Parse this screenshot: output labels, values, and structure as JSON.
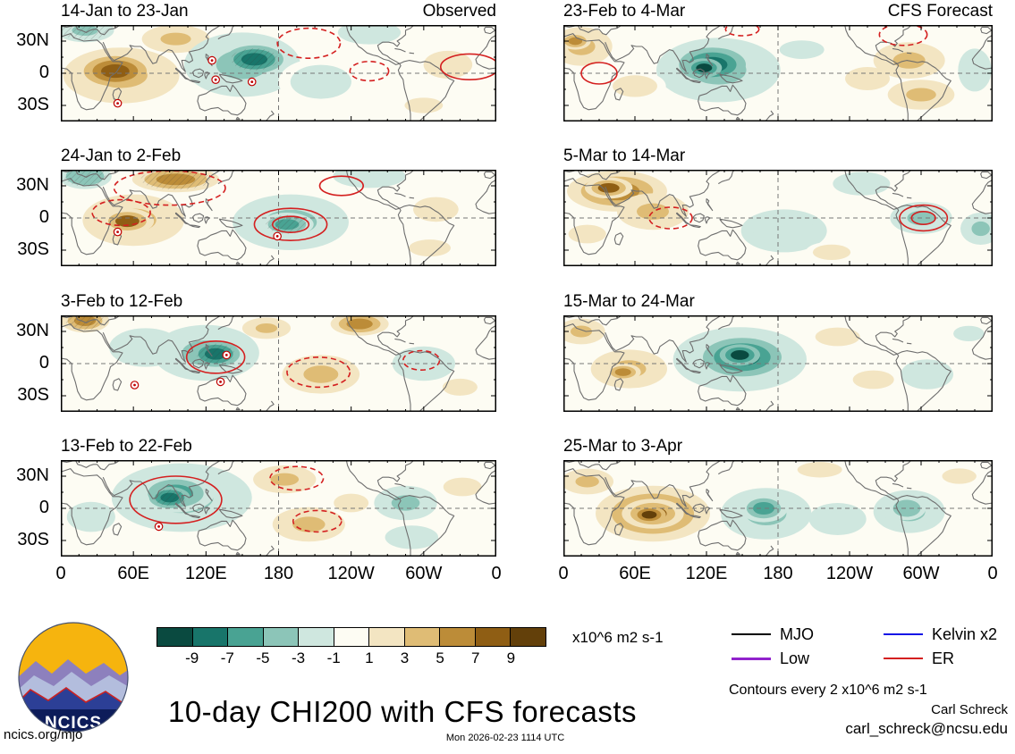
{
  "page": {
    "title": "10-day CHI200 with CFS forecasts",
    "site": "ncics.org/mjo",
    "timestamp": "Mon 2026-02-23 1114 UTC",
    "credit_name": "Carl Schreck",
    "credit_email": "carl_schreck@ncsu.edu",
    "contours_note": "Contours every 2 x10^6 m2 s-1",
    "logo_text": "NCICS"
  },
  "columns": [
    {
      "header": "Observed"
    },
    {
      "header": "CFS Forecast"
    }
  ],
  "axes": {
    "lat_ticks": [
      "30N",
      "0",
      "30S"
    ],
    "lon_ticks": [
      "0",
      "60E",
      "120E",
      "180",
      "120W",
      "60W",
      "0"
    ]
  },
  "colorbar": {
    "unit": "x10^6 m2 s-1",
    "tick_labels": [
      "-9",
      "-7",
      "-5",
      "-3",
      "-1",
      "1",
      "3",
      "5",
      "7",
      "9"
    ],
    "colors": [
      "#0a4a40",
      "#18756a",
      "#49a393",
      "#8cc5b8",
      "#cfe7df",
      "#fdfcf3",
      "#f3e5c2",
      "#dfbc75",
      "#bc8c38",
      "#8f5e14",
      "#63400a"
    ]
  },
  "legend": [
    {
      "label": "MJO",
      "color": "#000000",
      "width": 2.2
    },
    {
      "label": "Kelvin x2",
      "color": "#1515e6",
      "width": 2.2
    },
    {
      "label": "Low",
      "color": "#9122cc",
      "width": 3
    },
    {
      "label": "ER",
      "color": "#d42020",
      "width": 2.2
    }
  ],
  "chart_data": {
    "type": "heatmap",
    "title": "10-day CHI200 with CFS forecasts",
    "variable": "CHI200 velocity potential anomaly",
    "unit": "x10^6 m2 s-1",
    "contour_interval": 2,
    "colorbar_levels": [
      -9,
      -7,
      -5,
      -3,
      -1,
      1,
      3,
      5,
      7,
      9
    ],
    "lon_range": [
      0,
      360
    ],
    "lat_range": [
      -45,
      45
    ],
    "panels": [
      {
        "period": "14-Jan to 23-Jan",
        "column": "Observed",
        "anomalies": [
          {
            "lon": 50,
            "lat": -2,
            "rlon": 48,
            "rlat": 26,
            "v": 4
          },
          {
            "lon": 45,
            "lat": 2,
            "rlon": 26,
            "rlat": 14,
            "v": 8
          },
          {
            "lon": 95,
            "lat": 32,
            "rlon": 28,
            "rlat": 13,
            "v": 4
          },
          {
            "lon": 150,
            "lat": 8,
            "rlon": 48,
            "rlat": 30,
            "v": -4
          },
          {
            "lon": 160,
            "lat": 13,
            "rlon": 24,
            "rlat": 13,
            "v": -8,
            "hatch": true
          },
          {
            "lon": 20,
            "lat": 40,
            "rlon": 24,
            "rlat": 11,
            "v": -4,
            "hatch": true
          },
          {
            "lon": 215,
            "lat": -8,
            "rlon": 35,
            "rlat": 22,
            "v": -2
          },
          {
            "lon": 255,
            "lat": 38,
            "rlon": 26,
            "rlat": 11,
            "v": -3
          },
          {
            "lon": 320,
            "lat": 8,
            "rlon": 28,
            "rlat": 18,
            "v": 2
          },
          {
            "lon": 300,
            "lat": -30,
            "rlon": 22,
            "rlat": 10,
            "v": 2
          }
        ],
        "er_contours": [
          {
            "lon": 205,
            "lat": 28,
            "rlon": 26,
            "rlat": 14,
            "dashed": true
          },
          {
            "lon": 338,
            "lat": 6,
            "rlon": 24,
            "rlat": 12,
            "dashed": false
          },
          {
            "lon": 255,
            "lat": 2,
            "rlon": 16,
            "rlat": 9,
            "dashed": true
          }
        ],
        "markers": [
          [
            47,
            -28
          ],
          [
            125,
            12
          ],
          [
            128,
            -6
          ],
          [
            158,
            -8
          ]
        ]
      },
      {
        "period": "24-Jan to 2-Feb",
        "column": "Observed",
        "anomalies": [
          {
            "lon": 60,
            "lat": -2,
            "rlon": 42,
            "rlat": 24,
            "v": 4
          },
          {
            "lon": 55,
            "lat": -3,
            "rlon": 22,
            "rlat": 12,
            "v": 7
          },
          {
            "lon": 95,
            "lat": 36,
            "rlon": 36,
            "rlat": 12,
            "v": 5,
            "hatch": true
          },
          {
            "lon": 20,
            "lat": 39,
            "rlon": 22,
            "rlat": 12,
            "v": -5,
            "hatch": true
          },
          {
            "lon": 190,
            "lat": -4,
            "rlon": 48,
            "rlat": 26,
            "v": -4
          },
          {
            "lon": 187,
            "lat": -6,
            "rlon": 22,
            "rlat": 11,
            "v": -7,
            "hatch": true
          },
          {
            "lon": 255,
            "lat": 39,
            "rlon": 30,
            "rlat": 11,
            "v": -3
          },
          {
            "lon": 310,
            "lat": 8,
            "rlon": 26,
            "rlat": 16,
            "v": 2
          },
          {
            "lon": 305,
            "lat": -28,
            "rlon": 24,
            "rlat": 11,
            "v": 2
          }
        ],
        "er_contours": [
          {
            "lon": 190,
            "lat": -6,
            "rlon": 30,
            "rlat": 15,
            "dashed": false,
            "double": true
          },
          {
            "lon": 90,
            "lat": 28,
            "rlon": 46,
            "rlat": 16,
            "dashed": true
          },
          {
            "lon": 50,
            "lat": 5,
            "rlon": 24,
            "rlat": 12,
            "dashed": true
          },
          {
            "lon": 232,
            "lat": 30,
            "rlon": 18,
            "rlat": 9,
            "dashed": false
          }
        ],
        "markers": [
          [
            47,
            -13
          ],
          [
            179,
            -17
          ]
        ]
      },
      {
        "period": "3-Feb to 12-Feb",
        "column": "Observed",
        "anomalies": [
          {
            "lon": 120,
            "lat": 10,
            "rlon": 44,
            "rlat": 26,
            "v": -4
          },
          {
            "lon": 128,
            "lat": 9,
            "rlon": 20,
            "rlat": 12,
            "v": -8,
            "hatch": true
          },
          {
            "lon": 70,
            "lat": 15,
            "rlon": 30,
            "rlat": 18,
            "v": -3
          },
          {
            "lon": 20,
            "lat": 40,
            "rlon": 20,
            "rlat": 11,
            "v": 5,
            "hatch": true
          },
          {
            "lon": 215,
            "lat": -10,
            "rlon": 32,
            "rlat": 18,
            "v": 4
          },
          {
            "lon": 247,
            "lat": 37,
            "rlon": 24,
            "rlat": 11,
            "v": 5
          },
          {
            "lon": 170,
            "lat": 33,
            "rlon": 20,
            "rlat": 10,
            "v": 3
          },
          {
            "lon": 300,
            "lat": 0,
            "rlon": 26,
            "rlat": 16,
            "v": -3
          },
          {
            "lon": 330,
            "lat": -22,
            "rlon": 20,
            "rlat": 11,
            "v": 2
          }
        ],
        "er_contours": [
          {
            "lon": 128,
            "lat": 6,
            "rlon": 24,
            "rlat": 15,
            "dashed": false
          },
          {
            "lon": 213,
            "lat": -8,
            "rlon": 26,
            "rlat": 14,
            "dashed": true
          },
          {
            "lon": 298,
            "lat": 3,
            "rlon": 15,
            "rlat": 9,
            "dashed": true
          }
        ],
        "markers": [
          [
            61,
            -20
          ],
          [
            137,
            8
          ],
          [
            132,
            -17
          ]
        ]
      },
      {
        "period": "13-Feb to 22-Feb",
        "column": "Observed",
        "anomalies": [
          {
            "lon": 100,
            "lat": 10,
            "rlon": 58,
            "rlat": 32,
            "v": -4
          },
          {
            "lon": 95,
            "lat": 14,
            "rlon": 32,
            "rlat": 18,
            "v": -7
          },
          {
            "lon": 90,
            "lat": 10,
            "rlon": 17,
            "rlat": 10,
            "v": -9,
            "hatch": true
          },
          {
            "lon": 25,
            "lat": -8,
            "rlon": 20,
            "rlat": 14,
            "v": -3
          },
          {
            "lon": 185,
            "lat": 27,
            "rlon": 26,
            "rlat": 13,
            "v": 3
          },
          {
            "lon": 205,
            "lat": -15,
            "rlon": 30,
            "rlat": 16,
            "v": 4
          },
          {
            "lon": 240,
            "lat": 5,
            "rlon": 20,
            "rlat": 12,
            "v": 2
          },
          {
            "lon": 285,
            "lat": 5,
            "rlon": 26,
            "rlat": 16,
            "v": -4
          },
          {
            "lon": 290,
            "lat": -27,
            "rlon": 22,
            "rlat": 11,
            "v": -3
          },
          {
            "lon": 332,
            "lat": 20,
            "rlon": 22,
            "rlat": 12,
            "v": 2
          }
        ],
        "er_contours": [
          {
            "lon": 95,
            "lat": 8,
            "rlon": 38,
            "rlat": 22,
            "dashed": false
          },
          {
            "lon": 195,
            "lat": 28,
            "rlon": 22,
            "rlat": 11,
            "dashed": true
          },
          {
            "lon": 212,
            "lat": -12,
            "rlon": 20,
            "rlat": 10,
            "dashed": true
          }
        ],
        "markers": [
          [
            81,
            -17
          ]
        ]
      },
      {
        "period": "23-Feb to 4-Mar",
        "column": "CFS Forecast",
        "anomalies": [
          {
            "lon": 130,
            "lat": 3,
            "rlon": 52,
            "rlat": 30,
            "v": -4
          },
          {
            "lon": 125,
            "lat": 8,
            "rlon": 28,
            "rlat": 16,
            "v": -8
          },
          {
            "lon": 118,
            "lat": 5,
            "rlon": 15,
            "rlat": 9,
            "v": -10
          },
          {
            "lon": 15,
            "lat": 25,
            "rlon": 26,
            "rlat": 18,
            "v": 4
          },
          {
            "lon": 10,
            "lat": 30,
            "rlon": 13,
            "rlat": 8,
            "v": 6
          },
          {
            "lon": 60,
            "lat": -12,
            "rlon": 26,
            "rlat": 14,
            "v": 2
          },
          {
            "lon": 200,
            "lat": 22,
            "rlon": 26,
            "rlat": 12,
            "v": -2
          },
          {
            "lon": 255,
            "lat": -5,
            "rlon": 26,
            "rlat": 15,
            "v": 2
          },
          {
            "lon": 290,
            "lat": 12,
            "rlon": 30,
            "rlat": 17,
            "v": 3
          },
          {
            "lon": 300,
            "lat": -20,
            "rlon": 28,
            "rlat": 14,
            "v": 4
          },
          {
            "lon": 345,
            "lat": 3,
            "rlon": 14,
            "rlat": 20,
            "v": -3
          }
        ],
        "er_contours": [
          {
            "lon": 30,
            "lat": 0,
            "rlon": 15,
            "rlat": 10,
            "dashed": false
          },
          {
            "lon": 285,
            "lat": 36,
            "rlon": 20,
            "rlat": 10,
            "dashed": true
          },
          {
            "lon": 150,
            "lat": 41,
            "rlon": 14,
            "rlat": 6,
            "dashed": true
          }
        ],
        "markers": []
      },
      {
        "period": "5-Mar to 14-Mar",
        "column": "CFS Forecast",
        "anomalies": [
          {
            "lon": 45,
            "lat": 25,
            "rlon": 42,
            "rlat": 19,
            "v": 5
          },
          {
            "lon": 38,
            "lat": 28,
            "rlon": 20,
            "rlat": 10,
            "v": 7
          },
          {
            "lon": 75,
            "lat": 6,
            "rlon": 30,
            "rlat": 17,
            "v": 3
          },
          {
            "lon": 20,
            "lat": -15,
            "rlon": 22,
            "rlat": 12,
            "v": 2
          },
          {
            "lon": 185,
            "lat": -12,
            "rlon": 36,
            "rlat": 20,
            "v": -3
          },
          {
            "lon": 250,
            "lat": 32,
            "rlon": 24,
            "rlat": 11,
            "v": -3
          },
          {
            "lon": 300,
            "lat": 0,
            "rlon": 26,
            "rlat": 15,
            "v": -4
          },
          {
            "lon": 350,
            "lat": -10,
            "rlon": 17,
            "rlat": 15,
            "v": -4
          },
          {
            "lon": 225,
            "lat": -32,
            "rlon": 22,
            "rlat": 10,
            "v": 2
          }
        ],
        "er_contours": [
          {
            "lon": 90,
            "lat": 0,
            "rlon": 18,
            "rlat": 10,
            "dashed": true
          },
          {
            "lon": 302,
            "lat": 0,
            "rlon": 20,
            "rlat": 12,
            "dashed": false,
            "double": true
          }
        ],
        "markers": []
      },
      {
        "period": "15-Mar to 24-Mar",
        "column": "CFS Forecast",
        "anomalies": [
          {
            "lon": 148,
            "lat": 4,
            "rlon": 56,
            "rlat": 30,
            "v": -4
          },
          {
            "lon": 150,
            "lat": 6,
            "rlon": 33,
            "rlat": 18,
            "v": -8
          },
          {
            "lon": 148,
            "lat": 8,
            "rlon": 17,
            "rlat": 10,
            "v": -10
          },
          {
            "lon": 55,
            "lat": -5,
            "rlon": 32,
            "rlat": 18,
            "v": 4
          },
          {
            "lon": 50,
            "lat": -8,
            "rlon": 15,
            "rlat": 8,
            "v": 6
          },
          {
            "lon": 15,
            "lat": 30,
            "rlon": 20,
            "rlat": 12,
            "v": 3
          },
          {
            "lon": 230,
            "lat": 25,
            "rlon": 26,
            "rlat": 12,
            "v": 2
          },
          {
            "lon": 260,
            "lat": -15,
            "rlon": 24,
            "rlat": 12,
            "v": 2
          },
          {
            "lon": 305,
            "lat": -10,
            "rlon": 22,
            "rlat": 14,
            "v": -3
          },
          {
            "lon": 340,
            "lat": 28,
            "rlon": 18,
            "rlat": 10,
            "v": -2
          }
        ],
        "er_contours": [],
        "markers": []
      },
      {
        "period": "25-Mar to 3-Apr",
        "column": "CFS Forecast",
        "anomalies": [
          {
            "lon": 75,
            "lat": -5,
            "rlon": 48,
            "rlat": 26,
            "v": 5
          },
          {
            "lon": 75,
            "lat": -5,
            "rlon": 26,
            "rlat": 14,
            "v": 7
          },
          {
            "lon": 72,
            "lat": -6,
            "rlon": 14,
            "rlat": 8,
            "v": 9
          },
          {
            "lon": 20,
            "lat": 25,
            "rlon": 22,
            "rlat": 12,
            "v": 3
          },
          {
            "lon": 170,
            "lat": -5,
            "rlon": 38,
            "rlat": 24,
            "v": -4
          },
          {
            "lon": 168,
            "lat": 0,
            "rlon": 20,
            "rlat": 13,
            "v": -6
          },
          {
            "lon": 230,
            "lat": -10,
            "rlon": 24,
            "rlat": 15,
            "v": -3
          },
          {
            "lon": 290,
            "lat": -3,
            "rlon": 30,
            "rlat": 20,
            "v": -4
          },
          {
            "lon": 288,
            "lat": 0,
            "rlon": 16,
            "rlat": 11,
            "v": -5
          },
          {
            "lon": 215,
            "lat": 36,
            "rlon": 26,
            "rlat": 10,
            "v": 2
          },
          {
            "lon": 332,
            "lat": 30,
            "rlon": 20,
            "rlat": 10,
            "v": 2
          }
        ],
        "er_contours": [],
        "markers": []
      }
    ]
  }
}
